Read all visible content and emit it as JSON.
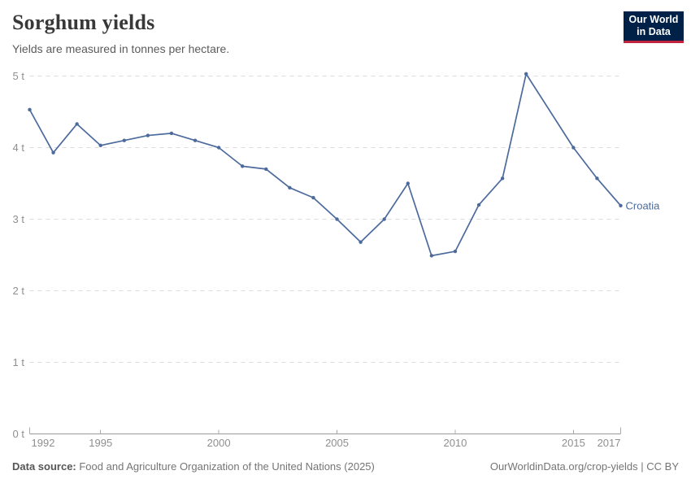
{
  "header": {
    "title": "Sorghum yields",
    "subtitle": "Yields are measured in tonnes per hectare.",
    "logo_line1": "Our World",
    "logo_line2": "in Data"
  },
  "chart_data": {
    "type": "line",
    "title": "Sorghum yields",
    "ylabel": "tonnes per hectare",
    "xlim": [
      1992,
      2017
    ],
    "ylim": [
      0,
      5
    ],
    "x_ticks": [
      1992,
      1995,
      2000,
      2005,
      2010,
      2015,
      2017
    ],
    "y_ticks": [
      0,
      1,
      2,
      3,
      4,
      5
    ],
    "y_tick_suffix": " t",
    "grid": "horizontal-dashed",
    "legend_position": "end-of-line-label",
    "series": [
      {
        "name": "Croatia",
        "color": "#4c6a9c",
        "points": [
          [
            1992,
            4.53
          ],
          [
            1993,
            3.93
          ],
          [
            1994,
            4.33
          ],
          [
            1995,
            4.03
          ],
          [
            1996,
            4.1
          ],
          [
            1997,
            4.17
          ],
          [
            1998,
            4.2
          ],
          [
            1999,
            4.1
          ],
          [
            2000,
            4.0
          ],
          [
            2001,
            3.74
          ],
          [
            2002,
            3.7
          ],
          [
            2003,
            3.44
          ],
          [
            2004,
            3.3
          ],
          [
            2005,
            3.0
          ],
          [
            2006,
            2.68
          ],
          [
            2007,
            3.0
          ],
          [
            2008,
            3.5
          ],
          [
            2009,
            2.49
          ],
          [
            2010,
            2.55
          ],
          [
            2011,
            3.2
          ],
          [
            2012,
            3.57
          ],
          [
            2013,
            5.03
          ],
          [
            2015,
            4.0
          ],
          [
            2016,
            3.57
          ],
          [
            2017,
            3.19
          ]
        ]
      }
    ]
  },
  "footer": {
    "source_label": "Data source:",
    "source_text": " Food and Agriculture Organization of the United Nations (2025)",
    "credit": "OurWorldinData.org/crop-yields | CC BY"
  },
  "colors": {
    "line": "#4c6a9c",
    "logo_bg": "#002147",
    "logo_accent": "#c3233c",
    "grid": "#dcdcdc",
    "axis": "#9b9b9b",
    "tick": "#ababab",
    "tick_label": "#8f8f8f",
    "title": "#383838",
    "subtitle": "#5b5b5b",
    "footer": "#757575"
  }
}
